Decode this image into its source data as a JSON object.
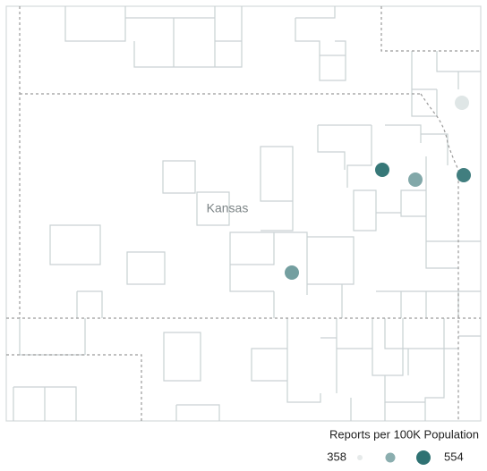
{
  "chart_data": {
    "type": "dot-map",
    "region_label": "Kansas",
    "legend": {
      "title": "Reports per 100K Population",
      "min": 358,
      "max": 554,
      "colors": [
        "#e6eaea",
        "#2f7273"
      ]
    },
    "points": [
      {
        "value": 365
      },
      {
        "value": 545
      },
      {
        "value": 465
      },
      {
        "value": 535
      },
      {
        "value": 480
      }
    ]
  }
}
